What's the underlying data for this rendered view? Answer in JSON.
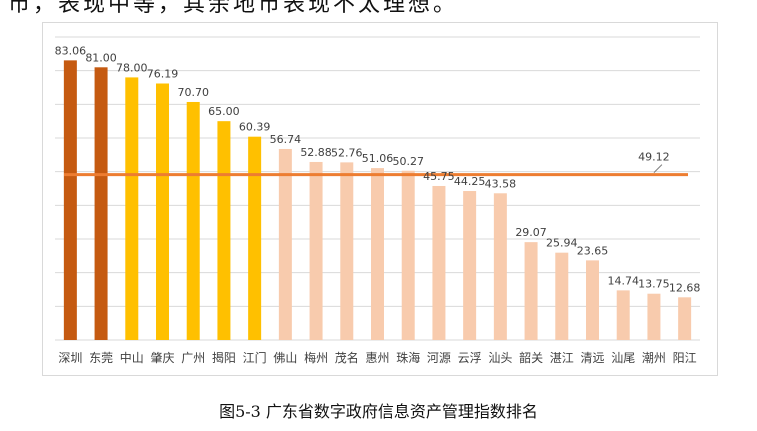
{
  "page": {
    "top_text": "市，表现中等，其余地市表现不太理想。",
    "caption": "图5-3  广东省数字政府信息资产管理指数排名"
  },
  "chart_data": {
    "type": "bar",
    "title": "",
    "xlabel": "",
    "ylabel": "",
    "ylim": [
      0,
      90
    ],
    "grid": true,
    "legend": "none",
    "categories": [
      "深圳",
      "东莞",
      "中山",
      "肇庆",
      "广州",
      "揭阳",
      "江门",
      "佛山",
      "梅州",
      "茂名",
      "惠州",
      "珠海",
      "河源",
      "云浮",
      "汕头",
      "韶关",
      "湛江",
      "清远",
      "汕尾",
      "潮州",
      "阳江"
    ],
    "values": [
      83.06,
      81.0,
      78.0,
      76.19,
      70.7,
      65.0,
      60.39,
      56.74,
      52.88,
      52.76,
      51.06,
      50.27,
      45.75,
      44.25,
      43.58,
      29.07,
      25.94,
      23.65,
      14.74,
      13.75,
      12.68
    ],
    "value_labels": [
      "83.06",
      "81.00",
      "78.00",
      "76.19",
      "70.70",
      "65.00",
      "60.39",
      "56.74",
      "52.88",
      "52.76",
      "51.06",
      "50.27",
      "45.75",
      "44.25",
      "43.58",
      "29.07",
      "25.94",
      "23.65",
      "14.74",
      "13.75",
      "12.68"
    ],
    "bar_colors": [
      "#c55a11",
      "#c55a11",
      "#ffc000",
      "#ffc000",
      "#ffc000",
      "#ffc000",
      "#ffc000",
      "#f8cbad",
      "#f8cbad",
      "#f8cbad",
      "#f8cbad",
      "#f8cbad",
      "#f8cbad",
      "#f8cbad",
      "#f8cbad",
      "#f8cbad",
      "#f8cbad",
      "#f8cbad",
      "#f8cbad",
      "#f8cbad",
      "#f8cbad"
    ],
    "average": {
      "value": 49.12,
      "label": "49.12",
      "color": "#ed7d31"
    },
    "grid_color": "#d9d9d9"
  }
}
